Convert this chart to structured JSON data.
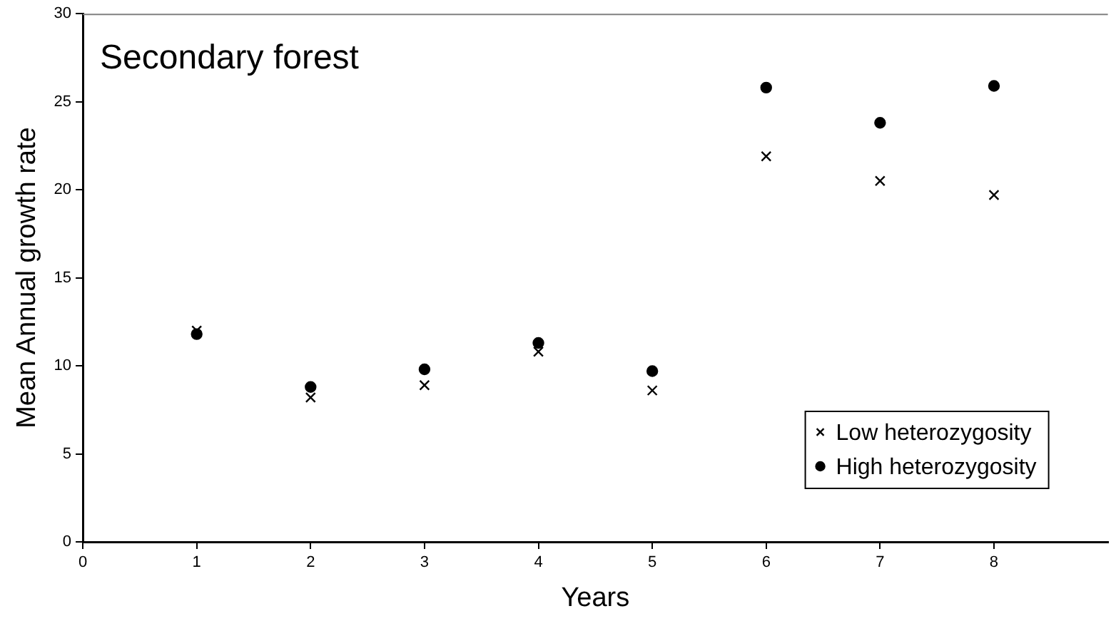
{
  "chart_data": {
    "type": "scatter",
    "title": "Secondary forest",
    "xlabel": "Years",
    "ylabel": "Mean Annual growth rate",
    "x": [
      1,
      2,
      3,
      4,
      5,
      6,
      7,
      8
    ],
    "series": [
      {
        "name": "Low heterozygosity",
        "color": "#000000",
        "marker": "cross",
        "values": [
          12.0,
          8.2,
          8.9,
          10.8,
          8.6,
          21.9,
          20.5,
          19.7
        ]
      },
      {
        "name": "High heterozygosity",
        "color": "#000000",
        "marker": "circle",
        "values": [
          11.8,
          8.8,
          9.8,
          11.3,
          9.7,
          25.8,
          23.8,
          25.9
        ]
      }
    ],
    "xlim": [
      0,
      9
    ],
    "xticks": [
      0,
      1,
      2,
      3,
      4,
      5,
      6,
      7,
      8
    ],
    "ylim": [
      0,
      30
    ],
    "yticks": [
      0,
      5,
      10,
      15,
      20,
      25,
      30
    ],
    "grid": false,
    "legend": "bottom right"
  }
}
